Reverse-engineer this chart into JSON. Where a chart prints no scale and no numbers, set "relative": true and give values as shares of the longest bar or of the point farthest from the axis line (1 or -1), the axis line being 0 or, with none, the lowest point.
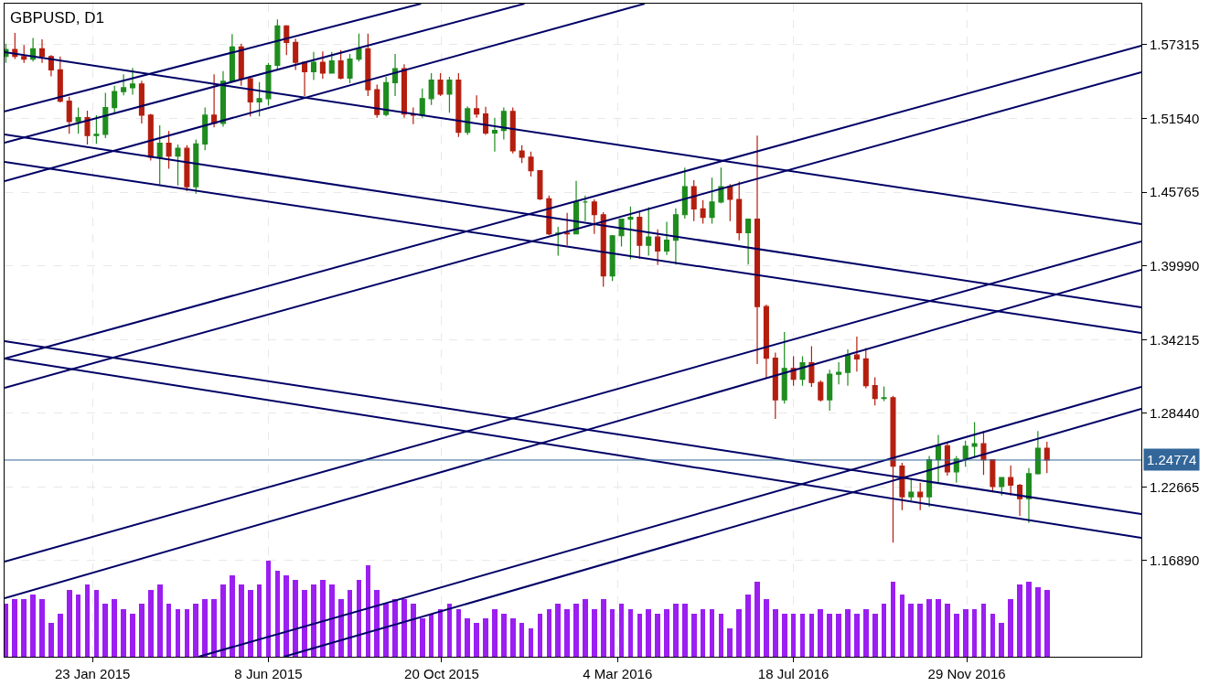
{
  "chart_data": [
    {
      "type": "candlestick",
      "title": "GBPUSD, D1",
      "xlim": [
        "2014-11-16",
        "2017-04-13"
      ],
      "ylim": [
        1.0936,
        1.6054
      ],
      "xticks": [
        {
          "value": "2015-01-23",
          "label": "23 Jan 2015"
        },
        {
          "value": "2015-06-08",
          "label": "8 Jun 2015"
        },
        {
          "value": "2015-10-20",
          "label": "20 Oct 2015"
        },
        {
          "value": "2016-03-04",
          "label": "4 Mar 2016"
        },
        {
          "value": "2016-07-18",
          "label": "18 Jul 2016"
        },
        {
          "value": "2016-11-29",
          "label": "29 Nov 2016"
        }
      ],
      "yticks": [
        {
          "value": 1.1689,
          "label": "1.16890"
        },
        {
          "value": 1.22665,
          "label": "1.22665"
        },
        {
          "value": 1.2844,
          "label": "1.28440"
        },
        {
          "value": 1.34215,
          "label": "1.34215"
        },
        {
          "value": 1.3999,
          "label": "1.39990"
        },
        {
          "value": 1.45765,
          "label": "1.45765"
        },
        {
          "value": 1.5154,
          "label": "1.51540"
        },
        {
          "value": 1.57315,
          "label": "1.57315"
        }
      ],
      "grid": true,
      "x": [
        "2014-11-17",
        "2014-11-24",
        "2014-12-01",
        "2014-12-08",
        "2014-12-15",
        "2014-12-22",
        "2014-12-29",
        "2015-01-05",
        "2015-01-12",
        "2015-01-19",
        "2015-01-26",
        "2015-02-02",
        "2015-02-09",
        "2015-02-16",
        "2015-02-23",
        "2015-03-02",
        "2015-03-09",
        "2015-03-16",
        "2015-03-23",
        "2015-03-30",
        "2015-04-06",
        "2015-04-13",
        "2015-04-20",
        "2015-04-27",
        "2015-05-04",
        "2015-05-11",
        "2015-05-18",
        "2015-05-25",
        "2015-06-01",
        "2015-06-08",
        "2015-06-15",
        "2015-06-22",
        "2015-06-29",
        "2015-07-06",
        "2015-07-13",
        "2015-07-20",
        "2015-07-27",
        "2015-08-03",
        "2015-08-10",
        "2015-08-17",
        "2015-08-24",
        "2015-08-31",
        "2015-09-07",
        "2015-09-14",
        "2015-09-21",
        "2015-09-28",
        "2015-10-05",
        "2015-10-12",
        "2015-10-19",
        "2015-10-26",
        "2015-11-02",
        "2015-11-09",
        "2015-11-16",
        "2015-11-23",
        "2015-11-30",
        "2015-12-07",
        "2015-12-14",
        "2015-12-21",
        "2015-12-28",
        "2016-01-04",
        "2016-01-11",
        "2016-01-18",
        "2016-01-25",
        "2016-02-01",
        "2016-02-08",
        "2016-02-15",
        "2016-02-22",
        "2016-02-29",
        "2016-03-07",
        "2016-03-14",
        "2016-03-21",
        "2016-03-28",
        "2016-04-04",
        "2016-04-11",
        "2016-04-18",
        "2016-04-25",
        "2016-05-02",
        "2016-05-09",
        "2016-05-16",
        "2016-05-23",
        "2016-05-30",
        "2016-06-06",
        "2016-06-13",
        "2016-06-20",
        "2016-06-27",
        "2016-07-04",
        "2016-07-11",
        "2016-07-18",
        "2016-07-25",
        "2016-08-01",
        "2016-08-08",
        "2016-08-15",
        "2016-08-22",
        "2016-08-29",
        "2016-09-05",
        "2016-09-12",
        "2016-09-19",
        "2016-09-26",
        "2016-10-03",
        "2016-10-10",
        "2016-10-17",
        "2016-10-24",
        "2016-10-31",
        "2016-11-07",
        "2016-11-14",
        "2016-11-21",
        "2016-11-28",
        "2016-12-05",
        "2016-12-12",
        "2016-12-19",
        "2016-12-26",
        "2017-01-02",
        "2017-01-09",
        "2017-01-16",
        "2017-01-23",
        "2017-01-30"
      ],
      "ohlc": [
        [
          1.564,
          1.574,
          1.559,
          1.5695
        ],
        [
          1.5695,
          1.5825,
          1.562,
          1.564
        ],
        [
          1.564,
          1.573,
          1.559,
          1.562
        ],
        [
          1.562,
          1.5785,
          1.56,
          1.57
        ],
        [
          1.57,
          1.5775,
          1.559,
          1.564
        ],
        [
          1.564,
          1.565,
          1.5485,
          1.5535
        ],
        [
          1.5535,
          1.564,
          1.528,
          1.529
        ],
        [
          1.529,
          1.5325,
          1.5035,
          1.513
        ],
        [
          1.513,
          1.524,
          1.5035,
          1.516
        ],
        [
          1.516,
          1.5215,
          1.495,
          1.502
        ],
        [
          1.502,
          1.518,
          1.4955,
          1.503
        ],
        [
          1.503,
          1.5355,
          1.5,
          1.524
        ],
        [
          1.524,
          1.541,
          1.519,
          1.5365
        ],
        [
          1.5365,
          1.55,
          1.5335,
          1.5395
        ],
        [
          1.5395,
          1.555,
          1.534,
          1.5425
        ],
        [
          1.5425,
          1.545,
          1.5115,
          1.518
        ],
        [
          1.518,
          1.519,
          1.4825,
          1.485
        ],
        [
          1.485,
          1.51,
          1.463,
          1.496
        ],
        [
          1.496,
          1.5055,
          1.476,
          1.486
        ],
        [
          1.486,
          1.495,
          1.463,
          1.492
        ],
        [
          1.492,
          1.4945,
          1.4585,
          1.462
        ],
        [
          1.462,
          1.499,
          1.4565,
          1.4955
        ],
        [
          1.4955,
          1.524,
          1.4905,
          1.518
        ],
        [
          1.518,
          1.55,
          1.5085,
          1.5115
        ],
        [
          1.5115,
          1.5525,
          1.509,
          1.5445
        ],
        [
          1.5445,
          1.5815,
          1.544,
          1.5715
        ],
        [
          1.5715,
          1.574,
          1.541,
          1.5465
        ],
        [
          1.5465,
          1.548,
          1.517,
          1.5285
        ],
        [
          1.5285,
          1.544,
          1.517,
          1.531
        ],
        [
          1.531,
          1.559,
          1.5255,
          1.557
        ],
        [
          1.557,
          1.593,
          1.5535,
          1.588
        ],
        [
          1.588,
          1.5885,
          1.565,
          1.575
        ],
        [
          1.575,
          1.578,
          1.5535,
          1.5595
        ],
        [
          1.5595,
          1.56,
          1.533,
          1.552
        ],
        [
          1.552,
          1.5675,
          1.5455,
          1.5595
        ],
        [
          1.5595,
          1.568,
          1.5465,
          1.551
        ],
        [
          1.551,
          1.5675,
          1.551,
          1.5605
        ],
        [
          1.5605,
          1.569,
          1.546,
          1.547
        ],
        [
          1.547,
          1.566,
          1.543,
          1.562
        ],
        [
          1.562,
          1.582,
          1.56,
          1.57
        ],
        [
          1.57,
          1.582,
          1.533,
          1.538
        ],
        [
          1.538,
          1.542,
          1.516,
          1.5185
        ],
        [
          1.5185,
          1.548,
          1.517,
          1.5435
        ],
        [
          1.5435,
          1.566,
          1.533,
          1.5545
        ],
        [
          1.5545,
          1.558,
          1.516,
          1.519
        ],
        [
          1.519,
          1.524,
          1.511,
          1.518
        ],
        [
          1.518,
          1.539,
          1.516,
          1.531
        ],
        [
          1.531,
          1.551,
          1.526,
          1.5455
        ],
        [
          1.5455,
          1.551,
          1.533,
          1.5345
        ],
        [
          1.5345,
          1.548,
          1.52,
          1.5455
        ],
        [
          1.5455,
          1.551,
          1.501,
          1.5045
        ],
        [
          1.5045,
          1.525,
          1.5025,
          1.523
        ],
        [
          1.523,
          1.5335,
          1.516,
          1.519
        ],
        [
          1.519,
          1.5245,
          1.5025,
          1.504
        ],
        [
          1.504,
          1.516,
          1.4895,
          1.506
        ],
        [
          1.506,
          1.524,
          1.499,
          1.521
        ],
        [
          1.521,
          1.524,
          1.488,
          1.49
        ],
        [
          1.49,
          1.4945,
          1.4805,
          1.485
        ],
        [
          1.485,
          1.4895,
          1.47,
          1.4745
        ],
        [
          1.4745,
          1.475,
          1.4515,
          1.4525
        ],
        [
          1.4525,
          1.455,
          1.424,
          1.425
        ],
        [
          1.425,
          1.4305,
          1.408,
          1.4255
        ],
        [
          1.4255,
          1.4415,
          1.416,
          1.425
        ],
        [
          1.425,
          1.4665,
          1.425,
          1.45
        ],
        [
          1.45,
          1.455,
          1.435,
          1.45
        ],
        [
          1.45,
          1.452,
          1.425,
          1.44
        ],
        [
          1.44,
          1.442,
          1.3835,
          1.392
        ],
        [
          1.392,
          1.424,
          1.388,
          1.4235
        ],
        [
          1.4235,
          1.437,
          1.415,
          1.4365
        ],
        [
          1.4365,
          1.4465,
          1.405,
          1.438
        ],
        [
          1.438,
          1.442,
          1.4055,
          1.416
        ],
        [
          1.416,
          1.446,
          1.408,
          1.4225
        ],
        [
          1.4225,
          1.4285,
          1.4005,
          1.4115
        ],
        [
          1.4115,
          1.4345,
          1.4085,
          1.42
        ],
        [
          1.42,
          1.445,
          1.401,
          1.44
        ],
        [
          1.44,
          1.477,
          1.437,
          1.462
        ],
        [
          1.462,
          1.467,
          1.435,
          1.4445
        ],
        [
          1.4445,
          1.4515,
          1.433,
          1.438
        ],
        [
          1.438,
          1.469,
          1.433,
          1.45
        ],
        [
          1.45,
          1.477,
          1.449,
          1.462
        ],
        [
          1.462,
          1.464,
          1.435,
          1.452
        ],
        [
          1.452,
          1.466,
          1.42,
          1.426
        ],
        [
          1.426,
          1.437,
          1.401,
          1.4365
        ],
        [
          1.4365,
          1.502,
          1.323,
          1.368
        ],
        [
          1.368,
          1.3695,
          1.312,
          1.3275
        ],
        [
          1.3275,
          1.332,
          1.28,
          1.295
        ],
        [
          1.295,
          1.348,
          1.292,
          1.3195
        ],
        [
          1.3195,
          1.329,
          1.306,
          1.311
        ],
        [
          1.311,
          1.329,
          1.306,
          1.324
        ],
        [
          1.324,
          1.337,
          1.305,
          1.3085
        ],
        [
          1.3085,
          1.31,
          1.2935,
          1.295
        ],
        [
          1.295,
          1.3185,
          1.2865,
          1.315
        ],
        [
          1.315,
          1.3245,
          1.307,
          1.3165
        ],
        [
          1.3165,
          1.3345,
          1.306,
          1.33
        ],
        [
          1.33,
          1.3445,
          1.317,
          1.327
        ],
        [
          1.327,
          1.3355,
          1.304,
          1.306
        ],
        [
          1.306,
          1.3125,
          1.2905,
          1.296
        ],
        [
          1.296,
          1.3055,
          1.294,
          1.2965
        ],
        [
          1.2965,
          1.298,
          1.183,
          1.243
        ],
        [
          1.243,
          1.2455,
          1.2085,
          1.219
        ],
        [
          1.219,
          1.2335,
          1.216,
          1.2225
        ],
        [
          1.2225,
          1.23,
          1.2085,
          1.219
        ],
        [
          1.219,
          1.251,
          1.211,
          1.248
        ],
        [
          1.248,
          1.2675,
          1.23,
          1.259
        ],
        [
          1.259,
          1.261,
          1.2355,
          1.2385
        ],
        [
          1.2385,
          1.251,
          1.23,
          1.2485
        ],
        [
          1.2485,
          1.263,
          1.2425,
          1.2585
        ],
        [
          1.2585,
          1.2775,
          1.2505,
          1.2605
        ],
        [
          1.2605,
          1.2705,
          1.236,
          1.248
        ],
        [
          1.248,
          1.248,
          1.2225,
          1.227
        ],
        [
          1.227,
          1.234,
          1.22,
          1.234
        ],
        [
          1.234,
          1.2435,
          1.22,
          1.228
        ],
        [
          1.228,
          1.229,
          1.204,
          1.2175
        ],
        [
          1.2175,
          1.2415,
          1.1985,
          1.237
        ],
        [
          1.237,
          1.2705,
          1.2365,
          1.257
        ],
        [
          1.257,
          1.262,
          1.2375,
          1.24774
        ]
      ],
      "colors": [
        "#1e8c1e",
        "#b41e0f",
        "#b41e0f",
        "#1e8c1e",
        "#b41e0f",
        "#b41e0f",
        "#b41e0f",
        "#b41e0f",
        "#1e8c1e",
        "#b41e0f",
        "#1e8c1e",
        "#1e8c1e",
        "#1e8c1e",
        "#1e8c1e",
        "#1e8c1e",
        "#b41e0f",
        "#b41e0f",
        "#1e8c1e",
        "#b41e0f",
        "#1e8c1e",
        "#b41e0f",
        "#1e8c1e",
        "#1e8c1e",
        "#b41e0f",
        "#1e8c1e",
        "#1e8c1e",
        "#b41e0f",
        "#b41e0f",
        "#1e8c1e",
        "#1e8c1e",
        "#1e8c1e",
        "#b41e0f",
        "#b41e0f",
        "#b41e0f",
        "#1e8c1e",
        "#b41e0f",
        "#1e8c1e",
        "#b41e0f",
        "#1e8c1e",
        "#1e8c1e",
        "#b41e0f",
        "#b41e0f",
        "#1e8c1e",
        "#1e8c1e",
        "#b41e0f",
        "#b41e0f",
        "#1e8c1e",
        "#1e8c1e",
        "#b41e0f",
        "#1e8c1e",
        "#b41e0f",
        "#1e8c1e",
        "#b41e0f",
        "#b41e0f",
        "#1e8c1e",
        "#1e8c1e",
        "#b41e0f",
        "#b41e0f",
        "#b41e0f",
        "#b41e0f",
        "#b41e0f",
        "#1e8c1e",
        "#b41e0f",
        "#1e8c1e",
        "#1e8c1e",
        "#b41e0f",
        "#b41e0f",
        "#1e8c1e",
        "#1e8c1e",
        "#1e8c1e",
        "#b41e0f",
        "#1e8c1e",
        "#b41e0f",
        "#1e8c1e",
        "#1e8c1e",
        "#1e8c1e",
        "#b41e0f",
        "#b41e0f",
        "#1e8c1e",
        "#1e8c1e",
        "#b41e0f",
        "#b41e0f",
        "#1e8c1e",
        "#b41e0f",
        "#b41e0f",
        "#b41e0f",
        "#1e8c1e",
        "#b41e0f",
        "#1e8c1e",
        "#b41e0f",
        "#b41e0f",
        "#1e8c1e",
        "#1e8c1e",
        "#1e8c1e",
        "#b41e0f",
        "#b41e0f",
        "#b41e0f",
        "#1e8c1e",
        "#b41e0f",
        "#b41e0f",
        "#1e8c1e",
        "#b41e0f",
        "#1e8c1e",
        "#1e8c1e",
        "#b41e0f",
        "#1e8c1e",
        "#1e8c1e",
        "#1e8c1e",
        "#b41e0f",
        "#b41e0f",
        "#1e8c1e",
        "#b41e0f",
        "#b41e0f",
        "#1e8c1e",
        "#1e8c1e",
        "#b41e0f"
      ],
      "series": [
        {
          "type": "line",
          "color": "#000066",
          "x": [
            "2014-11-16",
            "2015-10-04"
          ],
          "values": [
            1.5209,
            1.6054
          ]
        },
        {
          "type": "line",
          "color": "#000066",
          "x": [
            "2014-11-16",
            "2015-12-23"
          ],
          "values": [
            1.4965,
            1.6054
          ]
        },
        {
          "type": "line",
          "color": "#000066",
          "x": [
            "2014-11-16",
            "2016-03-25"
          ],
          "values": [
            1.4664,
            1.6054
          ]
        },
        {
          "type": "line",
          "color": "#000066",
          "x": [
            "2014-11-16",
            "2017-04-13"
          ],
          "values": [
            1.3273,
            1.5725
          ]
        },
        {
          "type": "line",
          "color": "#000066",
          "x": [
            "2014-11-16",
            "2017-04-13"
          ],
          "values": [
            1.3044,
            1.5517
          ]
        },
        {
          "type": "line",
          "color": "#000066",
          "x": [
            "2014-11-16",
            "2017-04-13"
          ],
          "values": [
            1.1682,
            1.4191
          ]
        },
        {
          "type": "line",
          "color": "#000066",
          "x": [
            "2014-11-16",
            "2017-04-13"
          ],
          "values": [
            1.1395,
            1.3968
          ]
        },
        {
          "type": "line",
          "color": "#000066",
          "x": [
            "2015-04-15",
            "2017-04-13"
          ],
          "values": [
            1.0936,
            1.3051
          ]
        },
        {
          "type": "line",
          "color": "#000066",
          "x": [
            "2015-06-20",
            "2017-04-13"
          ],
          "values": [
            1.0936,
            1.2879
          ]
        },
        {
          "type": "line",
          "color": "#000066",
          "x": [
            "2014-11-16",
            "2017-04-13"
          ],
          "values": [
            1.5674,
            1.4327
          ]
        },
        {
          "type": "line",
          "color": "#000066",
          "x": [
            "2014-11-16",
            "2017-04-13"
          ],
          "values": [
            1.5029,
            1.3674
          ]
        },
        {
          "type": "line",
          "color": "#000066",
          "x": [
            "2014-11-16",
            "2017-04-13"
          ],
          "values": [
            1.4814,
            1.3474
          ]
        },
        {
          "type": "line",
          "color": "#000066",
          "x": [
            "2014-11-16",
            "2017-04-13"
          ],
          "values": [
            1.3409,
            1.2055
          ]
        },
        {
          "type": "line",
          "color": "#000066",
          "x": [
            "2014-11-16",
            "2017-04-13"
          ],
          "values": [
            1.3273,
            1.1868
          ]
        }
      ],
      "ref_lines": [
        {
          "axis": "y",
          "value": 1.24774,
          "label": "1.24774",
          "color": "#336699"
        }
      ]
    },
    {
      "type": "bar",
      "relative": true,
      "tick_labels": false,
      "color": "#9b1ff0",
      "xlim": [
        "2014-11-16",
        "2017-04-13"
      ],
      "x": [
        "2014-11-17",
        "2014-11-24",
        "2014-12-01",
        "2014-12-08",
        "2014-12-15",
        "2014-12-22",
        "2014-12-29",
        "2015-01-05",
        "2015-01-12",
        "2015-01-19",
        "2015-01-26",
        "2015-02-02",
        "2015-02-09",
        "2015-02-16",
        "2015-02-23",
        "2015-03-02",
        "2015-03-09",
        "2015-03-16",
        "2015-03-23",
        "2015-03-30",
        "2015-04-06",
        "2015-04-13",
        "2015-04-20",
        "2015-04-27",
        "2015-05-04",
        "2015-05-11",
        "2015-05-18",
        "2015-05-25",
        "2015-06-01",
        "2015-06-08",
        "2015-06-15",
        "2015-06-22",
        "2015-06-29",
        "2015-07-06",
        "2015-07-13",
        "2015-07-20",
        "2015-07-27",
        "2015-08-03",
        "2015-08-10",
        "2015-08-17",
        "2015-08-24",
        "2015-08-31",
        "2015-09-07",
        "2015-09-14",
        "2015-09-21",
        "2015-09-28",
        "2015-10-05",
        "2015-10-12",
        "2015-10-19",
        "2015-10-26",
        "2015-11-02",
        "2015-11-09",
        "2015-11-16",
        "2015-11-23",
        "2015-11-30",
        "2015-12-07",
        "2015-12-14",
        "2015-12-21",
        "2015-12-28",
        "2016-01-04",
        "2016-01-11",
        "2016-01-18",
        "2016-01-25",
        "2016-02-01",
        "2016-02-08",
        "2016-02-15",
        "2016-02-22",
        "2016-02-29",
        "2016-03-07",
        "2016-03-14",
        "2016-03-21",
        "2016-03-28",
        "2016-04-04",
        "2016-04-11",
        "2016-04-18",
        "2016-04-25",
        "2016-05-02",
        "2016-05-09",
        "2016-05-16",
        "2016-05-23",
        "2016-05-30",
        "2016-06-06",
        "2016-06-13",
        "2016-06-20",
        "2016-06-27",
        "2016-07-04",
        "2016-07-11",
        "2016-07-18",
        "2016-07-25",
        "2016-08-01",
        "2016-08-08",
        "2016-08-15",
        "2016-08-22",
        "2016-08-29",
        "2016-09-05",
        "2016-09-12",
        "2016-09-19",
        "2016-09-26",
        "2016-10-03",
        "2016-10-10",
        "2016-10-17",
        "2016-10-24",
        "2016-10-31",
        "2016-11-07",
        "2016-11-14",
        "2016-11-21",
        "2016-11-28",
        "2016-12-05",
        "2016-12-12",
        "2016-12-19",
        "2016-12-26",
        "2017-01-02",
        "2017-01-09",
        "2017-01-16",
        "2017-01-23",
        "2017-01-30"
      ],
      "values": [
        0.55,
        0.6,
        0.6,
        0.65,
        0.6,
        0.35,
        0.45,
        0.7,
        0.65,
        0.75,
        0.7,
        0.55,
        0.6,
        0.5,
        0.45,
        0.55,
        0.7,
        0.75,
        0.55,
        0.5,
        0.5,
        0.55,
        0.6,
        0.6,
        0.75,
        0.85,
        0.75,
        0.7,
        0.75,
        1.0,
        0.9,
        0.85,
        0.8,
        0.7,
        0.75,
        0.8,
        0.75,
        0.6,
        0.7,
        0.8,
        0.95,
        0.7,
        0.55,
        0.6,
        0.6,
        0.55,
        0.4,
        0.45,
        0.5,
        0.55,
        0.5,
        0.4,
        0.35,
        0.4,
        0.5,
        0.45,
        0.4,
        0.35,
        0.3,
        0.45,
        0.5,
        0.55,
        0.5,
        0.55,
        0.6,
        0.5,
        0.6,
        0.5,
        0.55,
        0.5,
        0.45,
        0.5,
        0.45,
        0.5,
        0.55,
        0.55,
        0.45,
        0.5,
        0.5,
        0.45,
        0.3,
        0.5,
        0.65,
        0.78,
        0.6,
        0.5,
        0.45,
        0.45,
        0.45,
        0.45,
        0.5,
        0.45,
        0.45,
        0.5,
        0.45,
        0.5,
        0.45,
        0.55,
        0.78,
        0.65,
        0.55,
        0.55,
        0.6,
        0.6,
        0.55,
        0.45,
        0.5,
        0.5,
        0.55,
        0.45,
        0.35,
        0.6,
        0.75,
        0.78,
        0.72,
        0.7
      ]
    }
  ]
}
